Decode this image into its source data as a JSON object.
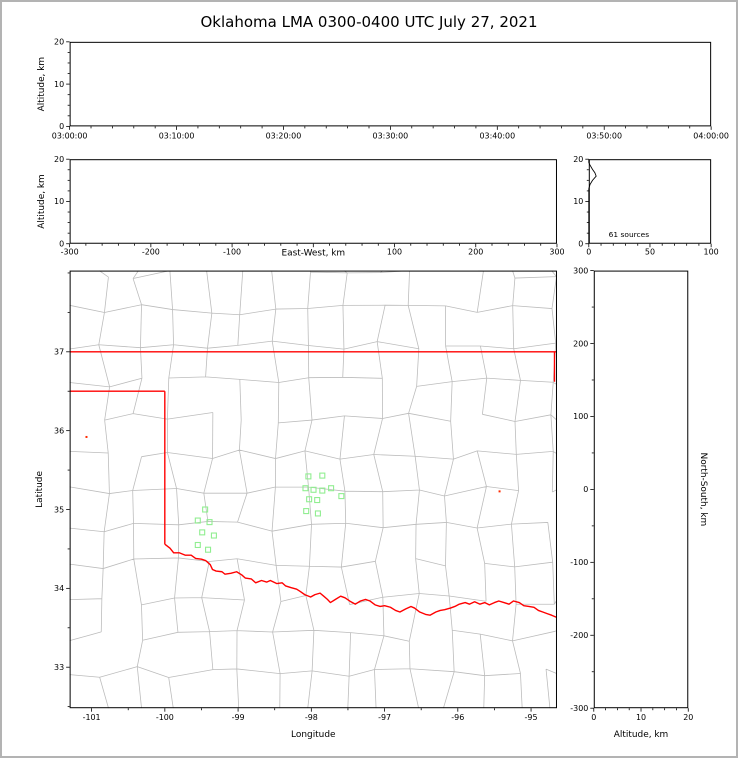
{
  "title": "Oklahoma LMA 0300-0400 UTC July 27, 2021",
  "colors": {
    "background": "#ffffff",
    "frame": "#b3b3b3",
    "axis": "#000000",
    "county_line": "#bcbcbc",
    "state_border": "#ff0000",
    "source_marker": "#90ee90",
    "noise_marker": "#ff2a00"
  },
  "chart_data": [
    {
      "id": "time_height",
      "type": "scatter",
      "ylabel": "Altitude, km",
      "x_tick_labels": [
        "03:00:00",
        "03:10:00",
        "03:20:00",
        "03:30:00",
        "03:40:00",
        "03:50:00",
        "04:00:00"
      ],
      "x_range_seconds": [
        0,
        3600
      ],
      "x_tick_seconds": [
        0,
        600,
        1200,
        1800,
        2400,
        3000,
        3600
      ],
      "x_minor_seconds_step": 120,
      "ylim": [
        0,
        20
      ],
      "yticks": [
        0,
        10,
        20
      ],
      "y_tick_labels": [
        "0",
        "10",
        "20"
      ],
      "y_minor_step": 2.5,
      "points": []
    },
    {
      "id": "ew_height",
      "type": "scatter",
      "xlabel": "East-West, km",
      "ylabel": "Altitude, km",
      "xlim": [
        -300,
        300
      ],
      "xticks": [
        -300,
        -200,
        -100,
        0,
        100,
        200,
        300
      ],
      "x_tick_labels": [
        "-300",
        "-200",
        "-100",
        "",
        "100",
        "200",
        "300"
      ],
      "x_minor_step": 20,
      "ylim": [
        0,
        20
      ],
      "yticks": [
        0,
        10,
        20
      ],
      "y_tick_labels": [
        "0",
        "10",
        "20"
      ],
      "y_minor_step": 2.5,
      "points": []
    },
    {
      "id": "altitude_histogram",
      "type": "line",
      "annotation": "61 sources",
      "xlim": [
        0,
        100
      ],
      "xticks": [
        0,
        50,
        100
      ],
      "x_tick_labels": [
        "0",
        "50",
        "100"
      ],
      "x_minor_step": 10,
      "ylim": [
        0,
        20
      ],
      "yticks": [
        0,
        10,
        20
      ],
      "y_tick_labels": [
        "0",
        "10",
        "20"
      ],
      "y_minor_step": 2.5,
      "series": [
        {
          "name": "vhf_source_count_vs_altitude",
          "points_count_alt": [
            [
              0,
              0
            ],
            [
              0,
              13
            ],
            [
              1,
              14
            ],
            [
              3,
              15
            ],
            [
              6,
              16
            ],
            [
              5,
              16.8
            ],
            [
              3,
              17.6
            ],
            [
              1,
              18.6
            ],
            [
              0,
              19.2
            ],
            [
              0,
              20
            ]
          ]
        }
      ]
    },
    {
      "id": "plan_view",
      "type": "scatter",
      "xlabel": "Longitude",
      "ylabel": "Latitude",
      "xlim": [
        -101.3,
        -94.646
      ],
      "xticks": [
        -101,
        -100,
        -99,
        -98,
        -97,
        -96,
        -95
      ],
      "x_tick_labels": [
        "-101",
        "-100",
        "-99",
        "-98",
        "-97",
        "-96",
        "-95"
      ],
      "x_minor_step": 0.5,
      "ylim": [
        32.48,
        38.03
      ],
      "yticks": [
        33,
        34,
        35,
        36,
        37
      ],
      "y_tick_labels": [
        "33",
        "34",
        "35",
        "36",
        "37"
      ],
      "y_minor_step": 0.5,
      "lma_sources_lonlat": [
        [
          -98.04,
          35.42
        ],
        [
          -97.85,
          35.43
        ],
        [
          -98.08,
          35.27
        ],
        [
          -97.97,
          35.25
        ],
        [
          -97.85,
          35.24
        ],
        [
          -97.73,
          35.27
        ],
        [
          -98.03,
          35.13
        ],
        [
          -97.92,
          35.12
        ],
        [
          -98.07,
          34.98
        ],
        [
          -97.91,
          34.95
        ],
        [
          -97.59,
          35.17
        ],
        [
          -99.45,
          35.0
        ],
        [
          -99.55,
          34.86
        ],
        [
          -99.39,
          34.84
        ],
        [
          -99.49,
          34.71
        ],
        [
          -99.33,
          34.67
        ],
        [
          -99.55,
          34.55
        ],
        [
          -99.41,
          34.49
        ]
      ],
      "noise_sources_lonlat": [
        [
          -101.07,
          35.92
        ],
        [
          -95.43,
          35.23
        ]
      ],
      "state_border_lines_lonlat": [
        [
          [
            -101.3,
            37.0
          ],
          [
            -94.646,
            37.0
          ]
        ],
        [
          [
            -101.3,
            36.5
          ],
          [
            -100.0,
            36.5
          ]
        ],
        [
          [
            -100.0,
            36.5
          ],
          [
            -100.0,
            34.56
          ]
        ],
        [
          [
            -94.68,
            37.0
          ],
          [
            -94.68,
            36.62
          ]
        ]
      ],
      "red_river_lonlat": [
        [
          -100.0,
          34.56
        ],
        [
          -99.93,
          34.51
        ],
        [
          -99.88,
          34.45
        ],
        [
          -99.8,
          34.45
        ],
        [
          -99.72,
          34.42
        ],
        [
          -99.64,
          34.42
        ],
        [
          -99.58,
          34.38
        ],
        [
          -99.5,
          34.37
        ],
        [
          -99.44,
          34.35
        ],
        [
          -99.38,
          34.3
        ],
        [
          -99.35,
          34.24
        ],
        [
          -99.3,
          34.22
        ],
        [
          -99.22,
          34.21
        ],
        [
          -99.18,
          34.18
        ],
        [
          -99.1,
          34.19
        ],
        [
          -99.02,
          34.21
        ],
        [
          -98.95,
          34.17
        ],
        [
          -98.9,
          34.13
        ],
        [
          -98.82,
          34.12
        ],
        [
          -98.76,
          34.07
        ],
        [
          -98.68,
          34.1
        ],
        [
          -98.61,
          34.08
        ],
        [
          -98.56,
          34.1
        ],
        [
          -98.47,
          34.06
        ],
        [
          -98.4,
          34.07
        ],
        [
          -98.35,
          34.03
        ],
        [
          -98.28,
          34.01
        ],
        [
          -98.2,
          33.99
        ],
        [
          -98.15,
          33.96
        ],
        [
          -98.09,
          33.92
        ],
        [
          -98.01,
          33.89
        ],
        [
          -97.95,
          33.92
        ],
        [
          -97.88,
          33.94
        ],
        [
          -97.83,
          33.9
        ],
        [
          -97.78,
          33.86
        ],
        [
          -97.74,
          33.82
        ],
        [
          -97.67,
          33.86
        ],
        [
          -97.6,
          33.9
        ],
        [
          -97.54,
          33.88
        ],
        [
          -97.46,
          33.83
        ],
        [
          -97.4,
          33.8
        ],
        [
          -97.33,
          33.84
        ],
        [
          -97.26,
          33.86
        ],
        [
          -97.2,
          33.84
        ],
        [
          -97.13,
          33.79
        ],
        [
          -97.06,
          33.77
        ],
        [
          -97.0,
          33.78
        ],
        [
          -96.92,
          33.76
        ],
        [
          -96.85,
          33.72
        ],
        [
          -96.79,
          33.7
        ],
        [
          -96.71,
          33.74
        ],
        [
          -96.64,
          33.77
        ],
        [
          -96.59,
          33.75
        ],
        [
          -96.52,
          33.7
        ],
        [
          -96.44,
          33.67
        ],
        [
          -96.38,
          33.66
        ],
        [
          -96.3,
          33.7
        ],
        [
          -96.24,
          33.72
        ],
        [
          -96.18,
          33.73
        ],
        [
          -96.1,
          33.75
        ],
        [
          -96.04,
          33.77
        ],
        [
          -95.98,
          33.8
        ],
        [
          -95.9,
          33.82
        ],
        [
          -95.84,
          33.8
        ],
        [
          -95.77,
          33.83
        ],
        [
          -95.7,
          33.8
        ],
        [
          -95.63,
          33.82
        ],
        [
          -95.57,
          33.79
        ],
        [
          -95.5,
          33.82
        ],
        [
          -95.44,
          33.84
        ],
        [
          -95.37,
          33.82
        ],
        [
          -95.3,
          33.8
        ],
        [
          -95.24,
          33.84
        ],
        [
          -95.16,
          33.82
        ],
        [
          -95.1,
          33.78
        ],
        [
          -95.03,
          33.77
        ],
        [
          -94.96,
          33.76
        ],
        [
          -94.9,
          33.72
        ],
        [
          -94.84,
          33.7
        ],
        [
          -94.78,
          33.68
        ],
        [
          -94.72,
          33.66
        ],
        [
          -94.646,
          33.63
        ]
      ]
    },
    {
      "id": "ns_height",
      "type": "scatter",
      "xlabel": "Altitude, km",
      "ylabel": "North-South, km",
      "xlim": [
        0,
        20
      ],
      "xticks": [
        0,
        10,
        20
      ],
      "x_tick_labels": [
        "0",
        "10",
        "20"
      ],
      "x_minor_step": 2.5,
      "ylim": [
        -300,
        300
      ],
      "yticks": [
        -300,
        -200,
        -100,
        0,
        100,
        200,
        300
      ],
      "y_tick_labels": [
        "-300",
        "-200",
        "-100",
        "0",
        "100",
        "200",
        "300"
      ],
      "y_minor_step": 50,
      "points": []
    }
  ]
}
